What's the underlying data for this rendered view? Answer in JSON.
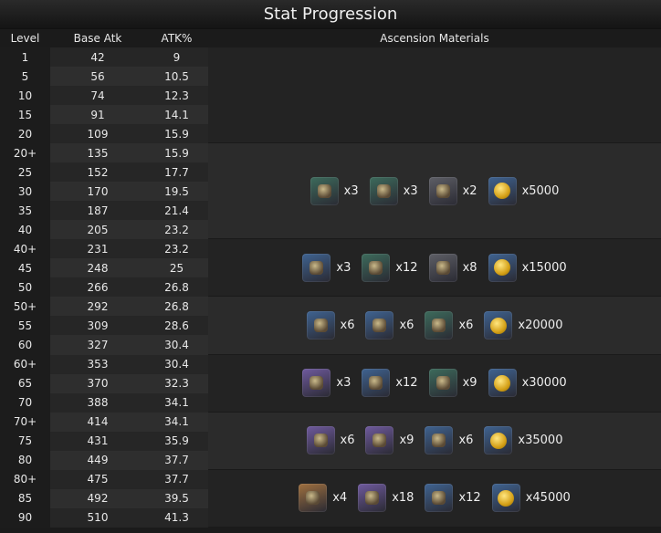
{
  "title": "Stat Progression",
  "headers": {
    "level": "Level",
    "base_atk": "Base Atk",
    "atk_pct": "ATK%",
    "materials": "Ascension Materials"
  },
  "rows": [
    {
      "level": "1",
      "base_atk": "42",
      "atk_pct": "9"
    },
    {
      "level": "5",
      "base_atk": "56",
      "atk_pct": "10.5"
    },
    {
      "level": "10",
      "base_atk": "74",
      "atk_pct": "12.3"
    },
    {
      "level": "15",
      "base_atk": "91",
      "atk_pct": "14.1"
    },
    {
      "level": "20",
      "base_atk": "109",
      "atk_pct": "15.9"
    },
    {
      "level": "20+",
      "base_atk": "135",
      "atk_pct": "15.9"
    },
    {
      "level": "25",
      "base_atk": "152",
      "atk_pct": "17.7"
    },
    {
      "level": "30",
      "base_atk": "170",
      "atk_pct": "19.5"
    },
    {
      "level": "35",
      "base_atk": "187",
      "atk_pct": "21.4"
    },
    {
      "level": "40",
      "base_atk": "205",
      "atk_pct": "23.2"
    },
    {
      "level": "40+",
      "base_atk": "231",
      "atk_pct": "23.2"
    },
    {
      "level": "45",
      "base_atk": "248",
      "atk_pct": "25"
    },
    {
      "level": "50",
      "base_atk": "266",
      "atk_pct": "26.8"
    },
    {
      "level": "50+",
      "base_atk": "292",
      "atk_pct": "26.8"
    },
    {
      "level": "55",
      "base_atk": "309",
      "atk_pct": "28.6"
    },
    {
      "level": "60",
      "base_atk": "327",
      "atk_pct": "30.4"
    },
    {
      "level": "60+",
      "base_atk": "353",
      "atk_pct": "30.4"
    },
    {
      "level": "65",
      "base_atk": "370",
      "atk_pct": "32.3"
    },
    {
      "level": "70",
      "base_atk": "388",
      "atk_pct": "34.1"
    },
    {
      "level": "70+",
      "base_atk": "414",
      "atk_pct": "34.1"
    },
    {
      "level": "75",
      "base_atk": "431",
      "atk_pct": "35.9"
    },
    {
      "level": "80",
      "base_atk": "449",
      "atk_pct": "37.7"
    },
    {
      "level": "80+",
      "base_atk": "475",
      "atk_pct": "37.7"
    },
    {
      "level": "85",
      "base_atk": "492",
      "atk_pct": "39.5"
    },
    {
      "level": "90",
      "base_atk": "510",
      "atk_pct": "41.3"
    }
  ],
  "rarity_colors": {
    "green": "#3d6b5c",
    "blue": "#3f6391",
    "purple": "#6f5a9e",
    "orange": "#a0703f",
    "gray": "#5e5f66"
  },
  "material_groups": [
    {
      "rows": 5,
      "items": []
    },
    {
      "rows": 5,
      "items": [
        {
          "icon": "material-icon",
          "rarity": "green",
          "qty": "x3"
        },
        {
          "icon": "material-icon",
          "rarity": "green",
          "qty": "x3"
        },
        {
          "icon": "material-icon",
          "rarity": "gray",
          "qty": "x2"
        },
        {
          "icon": "mora-coin-icon",
          "rarity": "blue",
          "qty": "x5000"
        }
      ]
    },
    {
      "rows": 3,
      "items": [
        {
          "icon": "material-icon",
          "rarity": "blue",
          "qty": "x3"
        },
        {
          "icon": "material-icon",
          "rarity": "green",
          "qty": "x12"
        },
        {
          "icon": "material-icon",
          "rarity": "gray",
          "qty": "x8"
        },
        {
          "icon": "mora-coin-icon",
          "rarity": "blue",
          "qty": "x15000"
        }
      ]
    },
    {
      "rows": 3,
      "items": [
        {
          "icon": "material-icon",
          "rarity": "blue",
          "qty": "x6"
        },
        {
          "icon": "material-icon",
          "rarity": "blue",
          "qty": "x6"
        },
        {
          "icon": "material-icon",
          "rarity": "green",
          "qty": "x6"
        },
        {
          "icon": "mora-coin-icon",
          "rarity": "blue",
          "qty": "x20000"
        }
      ]
    },
    {
      "rows": 3,
      "items": [
        {
          "icon": "material-icon",
          "rarity": "purple",
          "qty": "x3"
        },
        {
          "icon": "material-icon",
          "rarity": "blue",
          "qty": "x12"
        },
        {
          "icon": "material-icon",
          "rarity": "green",
          "qty": "x9"
        },
        {
          "icon": "mora-coin-icon",
          "rarity": "blue",
          "qty": "x30000"
        }
      ]
    },
    {
      "rows": 3,
      "items": [
        {
          "icon": "material-icon",
          "rarity": "purple",
          "qty": "x6"
        },
        {
          "icon": "material-icon",
          "rarity": "purple",
          "qty": "x9"
        },
        {
          "icon": "material-icon",
          "rarity": "blue",
          "qty": "x6"
        },
        {
          "icon": "mora-coin-icon",
          "rarity": "blue",
          "qty": "x35000"
        }
      ]
    },
    {
      "rows": 3,
      "items": [
        {
          "icon": "material-icon",
          "rarity": "orange",
          "qty": "x4"
        },
        {
          "icon": "material-icon",
          "rarity": "purple",
          "qty": "x18"
        },
        {
          "icon": "material-icon",
          "rarity": "blue",
          "qty": "x12"
        },
        {
          "icon": "mora-coin-icon",
          "rarity": "blue",
          "qty": "x45000"
        }
      ]
    }
  ]
}
